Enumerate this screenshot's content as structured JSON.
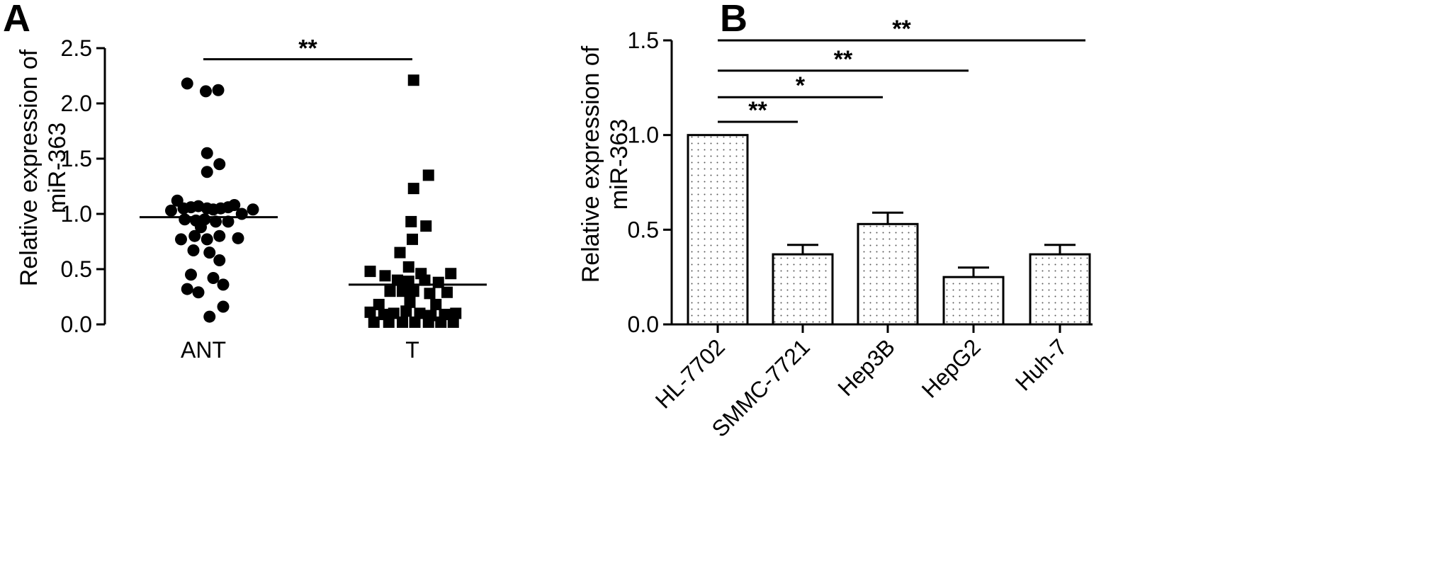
{
  "chart_data": [
    {
      "panel": "A",
      "type": "scatter",
      "categories": [
        "ANT",
        "T"
      ],
      "ylabel": [
        "Relative expression of",
        "miR-363"
      ],
      "ylim": [
        0,
        2.5
      ],
      "yticks": [
        "0.0",
        "0.5",
        "1.0",
        "1.5",
        "2.0",
        "2.5"
      ],
      "grid": false,
      "series": [
        {
          "category": "ANT",
          "marker": "circle",
          "mean": 0.97,
          "points": [
            {
              "dx": -0.13,
              "y": 2.18
            },
            {
              "dx": 0.02,
              "y": 2.11
            },
            {
              "dx": 0.12,
              "y": 2.12
            },
            {
              "dx": 0.03,
              "y": 1.55
            },
            {
              "dx": 0.13,
              "y": 1.45
            },
            {
              "dx": 0.03,
              "y": 1.38
            },
            {
              "dx": -0.26,
              "y": 1.03
            },
            {
              "dx": -0.21,
              "y": 1.12
            },
            {
              "dx": -0.16,
              "y": 1.05
            },
            {
              "dx": -0.1,
              "y": 1.06
            },
            {
              "dx": -0.04,
              "y": 1.07
            },
            {
              "dx": 0.03,
              "y": 1.05
            },
            {
              "dx": 0.08,
              "y": 1.04
            },
            {
              "dx": 0.14,
              "y": 1.05
            },
            {
              "dx": 0.2,
              "y": 1.06
            },
            {
              "dx": 0.25,
              "y": 1.08
            },
            {
              "dx": 0.31,
              "y": 1.0
            },
            {
              "dx": 0.4,
              "y": 1.04
            },
            {
              "dx": -0.15,
              "y": 0.95
            },
            {
              "dx": -0.06,
              "y": 0.94
            },
            {
              "dx": 0.01,
              "y": 0.95
            },
            {
              "dx": 0.1,
              "y": 0.93
            },
            {
              "dx": 0.2,
              "y": 0.93
            },
            {
              "dx": -0.02,
              "y": 0.88
            },
            {
              "dx": -0.18,
              "y": 0.77
            },
            {
              "dx": -0.07,
              "y": 0.8
            },
            {
              "dx": 0.03,
              "y": 0.77
            },
            {
              "dx": 0.13,
              "y": 0.8
            },
            {
              "dx": 0.28,
              "y": 0.78
            },
            {
              "dx": -0.08,
              "y": 0.67
            },
            {
              "dx": 0.05,
              "y": 0.65
            },
            {
              "dx": 0.13,
              "y": 0.58
            },
            {
              "dx": -0.1,
              "y": 0.45
            },
            {
              "dx": 0.08,
              "y": 0.42
            },
            {
              "dx": -0.13,
              "y": 0.32
            },
            {
              "dx": -0.04,
              "y": 0.29
            },
            {
              "dx": 0.16,
              "y": 0.36
            },
            {
              "dx": 0.16,
              "y": 0.16
            },
            {
              "dx": 0.05,
              "y": 0.07
            }
          ]
        },
        {
          "category": "T",
          "marker": "square",
          "mean": 0.36,
          "points": [
            {
              "dx": 0.01,
              "y": 2.21
            },
            {
              "dx": 0.13,
              "y": 1.35
            },
            {
              "dx": 0.01,
              "y": 1.23
            },
            {
              "dx": -0.01,
              "y": 0.93
            },
            {
              "dx": 0.11,
              "y": 0.89
            },
            {
              "dx": 0.0,
              "y": 0.77
            },
            {
              "dx": -0.1,
              "y": 0.65
            },
            {
              "dx": -0.03,
              "y": 0.52
            },
            {
              "dx": 0.07,
              "y": 0.46
            },
            {
              "dx": -0.34,
              "y": 0.48
            },
            {
              "dx": -0.22,
              "y": 0.44
            },
            {
              "dx": -0.12,
              "y": 0.4
            },
            {
              "dx": -0.03,
              "y": 0.39
            },
            {
              "dx": 0.1,
              "y": 0.4
            },
            {
              "dx": 0.21,
              "y": 0.38
            },
            {
              "dx": 0.31,
              "y": 0.46
            },
            {
              "dx": -0.18,
              "y": 0.3
            },
            {
              "dx": -0.08,
              "y": 0.3
            },
            {
              "dx": 0.01,
              "y": 0.3
            },
            {
              "dx": 0.14,
              "y": 0.28
            },
            {
              "dx": 0.28,
              "y": 0.29
            },
            {
              "dx": -0.27,
              "y": 0.18
            },
            {
              "dx": -0.02,
              "y": 0.2
            },
            {
              "dx": 0.19,
              "y": 0.18
            },
            {
              "dx": -0.34,
              "y": 0.11
            },
            {
              "dx": -0.23,
              "y": 0.09
            },
            {
              "dx": -0.15,
              "y": 0.1
            },
            {
              "dx": -0.05,
              "y": 0.12
            },
            {
              "dx": 0.06,
              "y": 0.1
            },
            {
              "dx": 0.15,
              "y": 0.08
            },
            {
              "dx": 0.26,
              "y": 0.09
            },
            {
              "dx": 0.35,
              "y": 0.1
            },
            {
              "dx": -0.31,
              "y": 0.02
            },
            {
              "dx": -0.19,
              "y": 0.02
            },
            {
              "dx": -0.08,
              "y": 0.02
            },
            {
              "dx": 0.02,
              "y": 0.02
            },
            {
              "dx": 0.13,
              "y": 0.02
            },
            {
              "dx": 0.23,
              "y": 0.02
            },
            {
              "dx": 0.33,
              "y": 0.02
            }
          ]
        }
      ],
      "annotations": [
        {
          "from": "ANT",
          "to": "T",
          "y": 2.4,
          "label": "**"
        }
      ]
    },
    {
      "panel": "B",
      "type": "bar",
      "categories": [
        "HL-7702",
        "SMMC-7721",
        "Hep3B",
        "HepG2",
        "Huh-7"
      ],
      "values": [
        1.0,
        0.37,
        0.53,
        0.25,
        0.37
      ],
      "errors": [
        0.0,
        0.05,
        0.06,
        0.05,
        0.05
      ],
      "ylabel": [
        "Relative expression of",
        "miR-363"
      ],
      "ylim": [
        0,
        1.5
      ],
      "yticks": [
        "0.0",
        "0.5",
        "1.0",
        "1.5"
      ],
      "grid": false,
      "bar_fill": "dotted",
      "annotations": [
        {
          "from": 0,
          "to": 1,
          "y": 1.07,
          "label": "**"
        },
        {
          "from": 0,
          "to": 2,
          "y": 1.2,
          "label": "*"
        },
        {
          "from": 0,
          "to": 3,
          "y": 1.34,
          "label": "**"
        },
        {
          "from": 0,
          "to": 4,
          "y": 1.5,
          "label": "**"
        }
      ]
    }
  ]
}
